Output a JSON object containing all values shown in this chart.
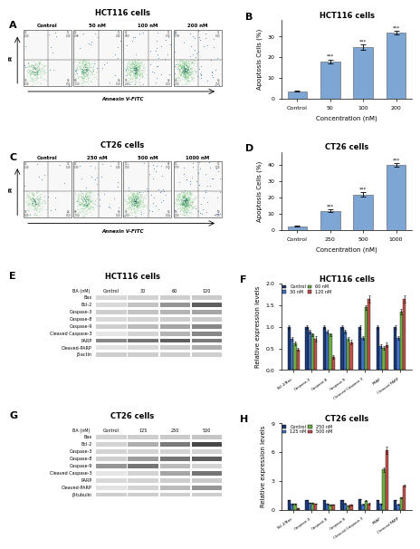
{
  "panel_B": {
    "title": "HCT116 cells",
    "xlabel": "Concentration (nM)",
    "ylabel": "Apoptosis Cells (%)",
    "categories": [
      "Control",
      "50",
      "100",
      "200"
    ],
    "values": [
      3.5,
      18.0,
      25.0,
      32.0
    ],
    "errors": [
      0.3,
      1.0,
      1.2,
      0.8
    ],
    "bar_color": "#7ea6d4",
    "ylim": [
      0,
      38
    ],
    "stars": [
      "",
      "***",
      "***",
      "***"
    ]
  },
  "panel_D": {
    "title": "CT26 cells",
    "xlabel": "Concentration (nM)",
    "ylabel": "Apoptosis Cells (%)",
    "categories": [
      "Control",
      "250",
      "500",
      "1000"
    ],
    "values": [
      2.5,
      12.0,
      22.0,
      40.0
    ],
    "errors": [
      0.3,
      1.0,
      1.5,
      1.2
    ],
    "bar_color": "#7ea6d4",
    "ylim": [
      0,
      48
    ],
    "stars": [
      "",
      "***",
      "***",
      "***"
    ]
  },
  "panel_F": {
    "title": "HCT116 cells",
    "ylabel": "Relative expression levels",
    "categories": [
      "Bcl-2/Bax",
      "Caspase-3",
      "Caspase-8",
      "Caspase-9",
      "Cleaved Caspase-3",
      "PRAP",
      "Cleaved PARP"
    ],
    "legend_labels": [
      "Control",
      "30 nM",
      "60 nM",
      "120 nM"
    ],
    "legend_colors": [
      "#1f3b73",
      "#4472c4",
      "#70ad47",
      "#c0504d"
    ],
    "values": {
      "Control": [
        1.0,
        1.0,
        1.0,
        1.0,
        1.0,
        1.0,
        1.0
      ],
      "30 nM": [
        0.72,
        0.9,
        0.9,
        0.9,
        0.75,
        0.55,
        0.75
      ],
      "60 nM": [
        0.62,
        0.82,
        0.82,
        0.72,
        1.45,
        0.52,
        1.35
      ],
      "120 nM": [
        0.48,
        0.72,
        0.3,
        0.65,
        1.65,
        0.58,
        1.65
      ]
    },
    "errors": {
      "Control": [
        0.04,
        0.04,
        0.04,
        0.04,
        0.04,
        0.04,
        0.04
      ],
      "30 nM": [
        0.04,
        0.04,
        0.04,
        0.04,
        0.04,
        0.04,
        0.04
      ],
      "60 nM": [
        0.04,
        0.04,
        0.04,
        0.04,
        0.06,
        0.04,
        0.06
      ],
      "120 nM": [
        0.04,
        0.06,
        0.04,
        0.05,
        0.08,
        0.05,
        0.08
      ]
    },
    "ylim": [
      0.0,
      2.0
    ],
    "yticks": [
      0.0,
      0.5,
      1.0,
      1.5,
      2.0
    ]
  },
  "panel_H": {
    "title": "CT26 cells",
    "ylabel": "Relative expression levels",
    "categories": [
      "Bcl-2/Bax",
      "Caspase-3",
      "Caspase-8",
      "Caspase-9",
      "Cleaved Caspase-3",
      "PRAP",
      "Cleaved PARP"
    ],
    "legend_labels": [
      "Control",
      "125 nM",
      "250 nM",
      "500 nM"
    ],
    "legend_colors": [
      "#1f3b73",
      "#4472c4",
      "#70ad47",
      "#c0504d"
    ],
    "values": {
      "Control": [
        1.0,
        1.0,
        1.0,
        1.0,
        1.1,
        1.0,
        1.0
      ],
      "125 nM": [
        0.6,
        0.72,
        0.6,
        0.65,
        0.55,
        0.6,
        0.55
      ],
      "250 nM": [
        0.58,
        0.68,
        0.48,
        0.42,
        0.95,
        4.2,
        1.25
      ],
      "500 nM": [
        0.13,
        0.62,
        0.52,
        0.48,
        0.62,
        6.2,
        2.5
      ]
    },
    "errors": {
      "Control": [
        0.04,
        0.04,
        0.04,
        0.04,
        0.04,
        0.04,
        0.04
      ],
      "125 nM": [
        0.04,
        0.04,
        0.04,
        0.04,
        0.04,
        0.04,
        0.04
      ],
      "250 nM": [
        0.04,
        0.04,
        0.04,
        0.04,
        0.05,
        0.25,
        0.07
      ],
      "500 nM": [
        0.03,
        0.04,
        0.04,
        0.04,
        0.05,
        0.35,
        0.12
      ]
    },
    "ylim": [
      0,
      9
    ],
    "yticks": [
      0,
      3,
      6,
      9
    ]
  },
  "wb_E_labels": [
    "Bax",
    "Bcl-2",
    "Caspase-3",
    "Caspase-8",
    "Caspase-9",
    "Cleaved Caspase-3",
    "PARP",
    "Cleaved-PARP",
    "β-actin"
  ],
  "wb_G_labels": [
    "Bax",
    "Bcl-2",
    "Caspase-3",
    "Caspase-8",
    "Caspase-9",
    "Cleaved Caspase-3",
    "PARP",
    "Cleaved-PARP",
    "β-tubulin"
  ],
  "wb_E_header": [
    "Control",
    "30",
    "60",
    "120"
  ],
  "wb_G_header": [
    "Control",
    "125",
    "250",
    "500"
  ],
  "wb_E_bands": {
    "Bax": [
      0.25,
      0.28,
      0.3,
      0.32
    ],
    "Bcl-2": [
      0.25,
      0.35,
      0.5,
      0.7
    ],
    "Caspase-3": [
      0.3,
      0.35,
      0.4,
      0.45
    ],
    "Caspase-8": [
      0.25,
      0.28,
      0.3,
      0.32
    ],
    "Caspase-9": [
      0.3,
      0.38,
      0.45,
      0.55
    ],
    "Cleaved Caspase-3": [
      0.18,
      0.28,
      0.4,
      0.55
    ],
    "PARP": [
      0.55,
      0.62,
      0.7,
      0.6
    ],
    "Cleaved-PARP": [
      0.2,
      0.25,
      0.32,
      0.42
    ],
    "β-actin": [
      0.3,
      0.3,
      0.3,
      0.3
    ]
  },
  "wb_G_bands": {
    "Bax": [
      0.28,
      0.3,
      0.32,
      0.34
    ],
    "Bcl-2": [
      0.28,
      0.42,
      0.6,
      0.78
    ],
    "Caspase-3": [
      0.28,
      0.28,
      0.28,
      0.28
    ],
    "Caspase-8": [
      0.3,
      0.48,
      0.62,
      0.7
    ],
    "Caspase-9": [
      0.5,
      0.62,
      0.38,
      0.28
    ],
    "Cleaved Caspase-3": [
      0.18,
      0.28,
      0.45,
      0.62
    ],
    "PARP": [
      0.25,
      0.28,
      0.3,
      0.32
    ],
    "Cleaved-PARP": [
      0.2,
      0.28,
      0.38,
      0.5
    ],
    "β-tubulin": [
      0.3,
      0.3,
      0.3,
      0.3
    ]
  },
  "fc_A_labels": [
    "Control",
    "50 nM",
    "100 nM",
    "200 nM"
  ],
  "fc_C_labels": [
    "Control",
    "250 nM",
    "500 nM",
    "1000 nM"
  ],
  "background_color": "#ffffff",
  "panel_label_fontsize": 8,
  "title_fontsize": 6,
  "axis_fontsize": 5,
  "tick_fontsize": 4.5,
  "star_fontsize": 4,
  "wb_label_fontsize": 3.5,
  "wb_header_fontsize": 3.5,
  "fc_label_fontsize": 4,
  "legend_fontsize": 3.5
}
